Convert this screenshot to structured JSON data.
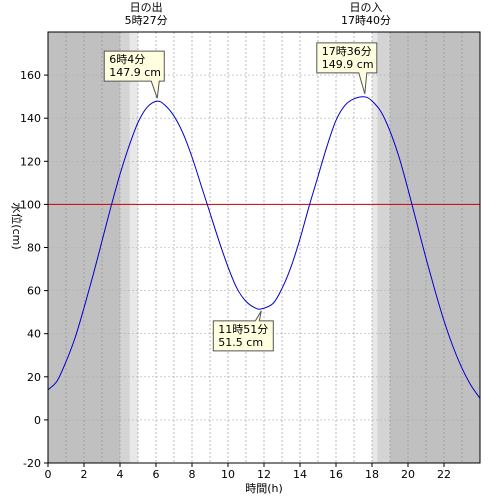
{
  "chart_data": {
    "type": "line",
    "xlabel": "時間(h)",
    "ylabel": "水位(cm)",
    "xlim": [
      0,
      24
    ],
    "ylim": [
      -20,
      180
    ],
    "x_ticks": [
      0,
      2,
      4,
      6,
      8,
      10,
      12,
      14,
      16,
      18,
      20,
      22
    ],
    "y_ticks": [
      -20,
      0,
      20,
      40,
      60,
      80,
      100,
      120,
      140,
      160
    ],
    "reference_line": {
      "value": 100,
      "color": "#cc0000"
    },
    "series": [
      {
        "color": "#0000cc",
        "x": [
          0,
          0.5,
          1,
          1.5,
          2,
          2.5,
          3,
          3.5,
          4,
          4.5,
          5,
          5.5,
          6.07,
          6.5,
          7,
          7.5,
          8,
          8.5,
          9,
          9.5,
          10,
          10.5,
          11,
          11.5,
          11.85,
          12.5,
          13,
          13.5,
          14,
          14.5,
          15,
          15.5,
          16,
          16.5,
          17,
          17.6,
          18,
          18.5,
          19,
          19.5,
          20,
          20.5,
          21,
          21.5,
          22,
          22.5,
          23,
          23.5,
          24
        ],
        "y": [
          14,
          18,
          27,
          38,
          52,
          67,
          83,
          99,
          114,
          127,
          138,
          145,
          147.9,
          146,
          141,
          133,
          122,
          109,
          96,
          83,
          71,
          61,
          55,
          52,
          51.5,
          54,
          61,
          71,
          84,
          99,
          113,
          127,
          139,
          146,
          149,
          149.9,
          148,
          143,
          134,
          122,
          107,
          91,
          75,
          60,
          46,
          34,
          24,
          16,
          10
        ]
      }
    ],
    "sun_times": {
      "sunrise": {
        "label": "日の出",
        "time": "5時27分",
        "hour": 5.45
      },
      "sunset": {
        "label": "日の入",
        "time": "17時40分",
        "hour": 17.67
      }
    },
    "annotations": [
      {
        "line1": "6時4分",
        "line2": "147.9 cm",
        "x": 6.07,
        "y": 147.9
      },
      {
        "line1": "11時51分",
        "line2": "51.5 cm",
        "x": 11.85,
        "y": 51.5
      },
      {
        "line1": "17時36分",
        "line2": "149.9 cm",
        "x": 17.6,
        "y": 149.9
      }
    ],
    "colors": {
      "night": "#c0c0c0",
      "twilight_dark": "#d4d4d4",
      "twilight_light": "#e8e8e8",
      "day": "#ffffff",
      "annotation_bg": "#ffffe0"
    }
  }
}
